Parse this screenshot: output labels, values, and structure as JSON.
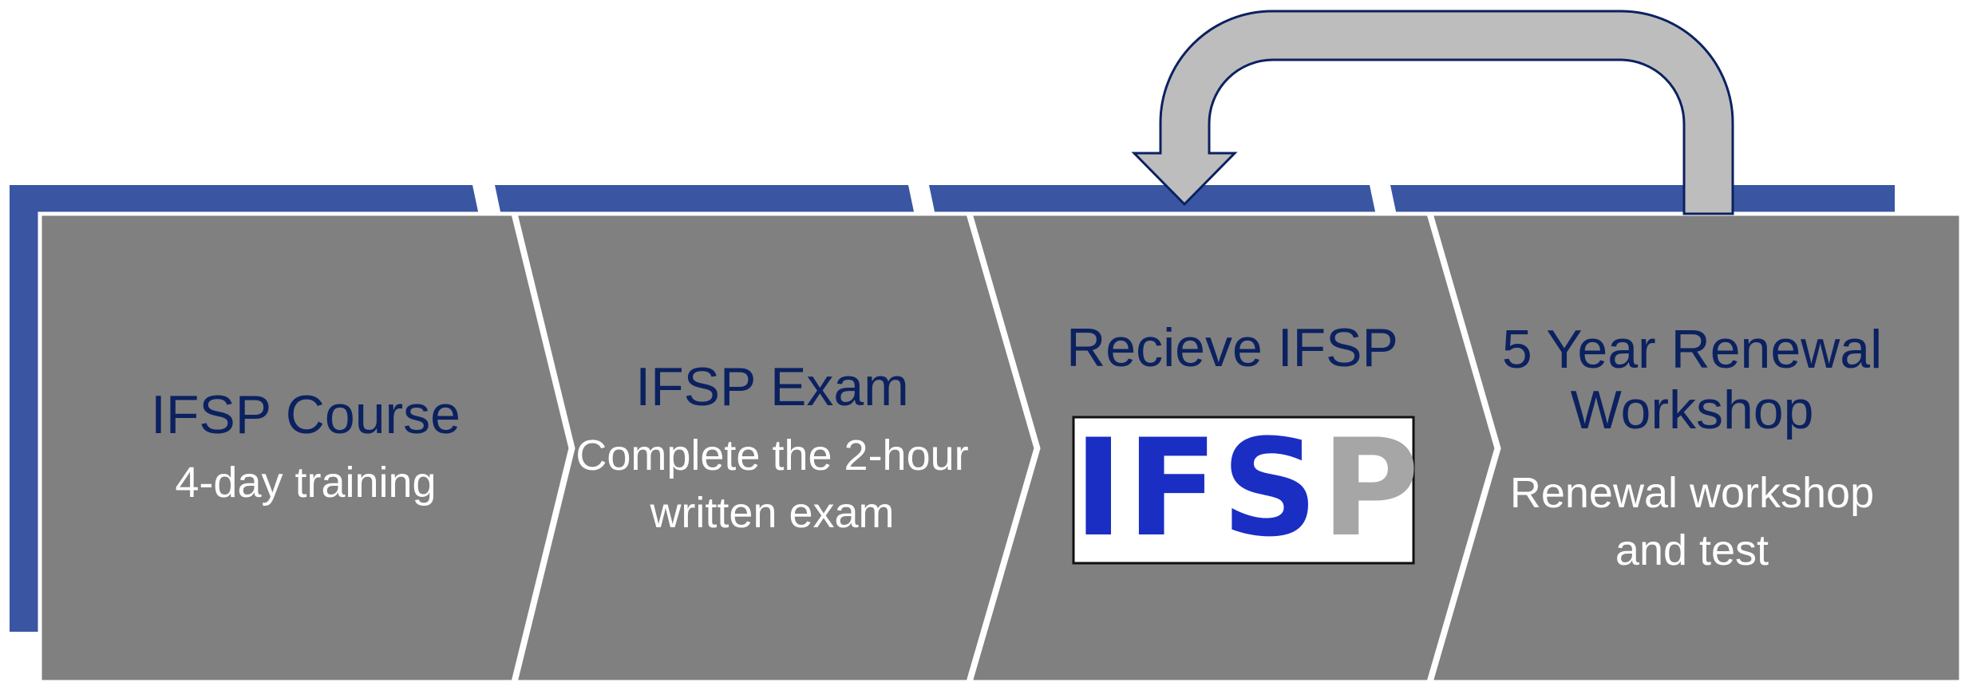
{
  "steps": [
    {
      "title": "IFSP Course",
      "subtitle": "4-day training"
    },
    {
      "title": "IFSP Exam",
      "subtitle_lines": [
        "Complete the 2-hour",
        "written exam"
      ]
    },
    {
      "title": "Recieve IFSP",
      "logo": {
        "primary": "IFS",
        "secondary": "P"
      }
    },
    {
      "title_lines": [
        "5 Year Renewal",
        "Workshop"
      ],
      "subtitle_lines": [
        "Renewal workshop",
        "and test"
      ]
    }
  ],
  "colors": {
    "band": "#3a56a3",
    "chevron_fill": "#808080",
    "title_text": "#0b2160",
    "subtitle_text": "#ffffff",
    "loop_arrow_fill": "#bdbdbd",
    "loop_arrow_outline": "#0b2160",
    "logo_primary": "#1a2ec4",
    "logo_secondary": "#a6a6a6"
  }
}
